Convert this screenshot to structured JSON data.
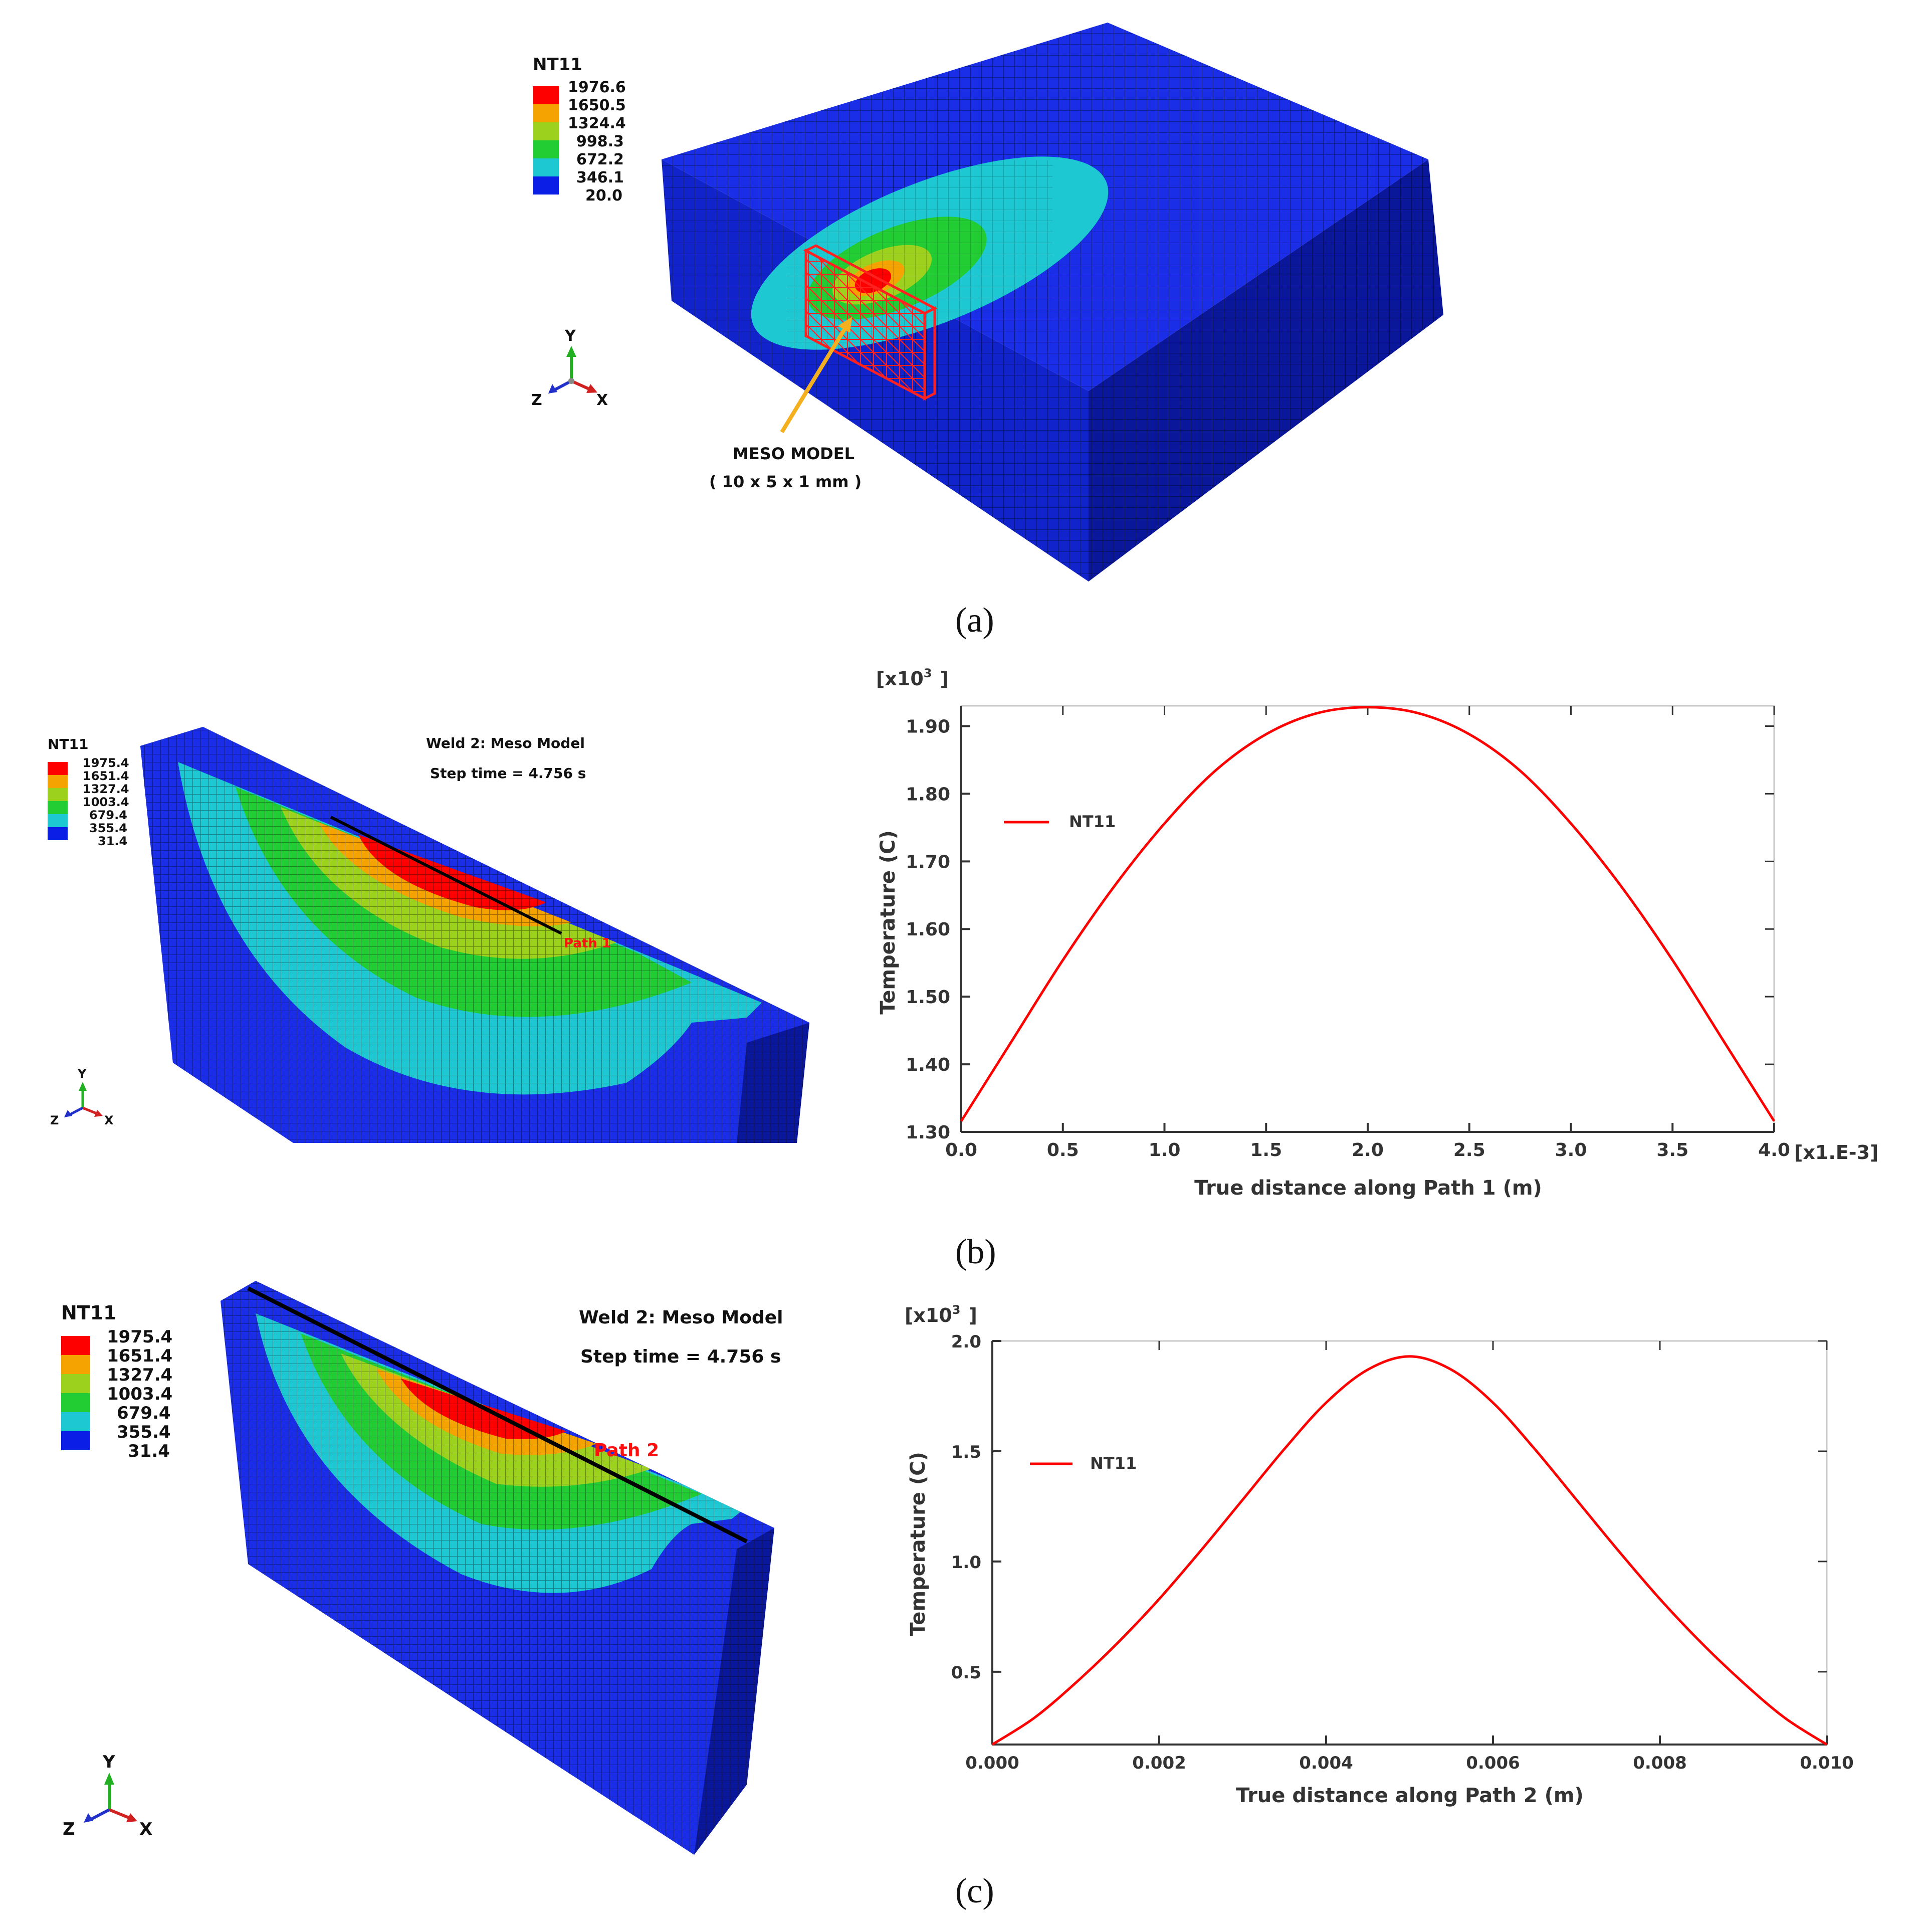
{
  "panel_a": {
    "legend_title": "NT11",
    "legend_values": [
      "1976.6",
      "1650.5",
      "1324.4",
      "998.3",
      "672.2",
      "346.1",
      "20.0"
    ],
    "axis": {
      "y": "Y",
      "z": "Z",
      "x": "X"
    },
    "annotation_line1": "MESO MODEL",
    "annotation_line2": "( 10 x 5 x 1 mm )",
    "caption": "(a)"
  },
  "panel_b": {
    "legend_title": "NT11",
    "legend_values": [
      "1975.4",
      "1651.4",
      "1327.4",
      "1003.4",
      "679.4",
      "355.4",
      "31.4"
    ],
    "title_line1": "Weld 2: Meso Model",
    "title_line2": "Step time = 4.756 s",
    "path_label": "Path 1",
    "axis": {
      "y": "Y",
      "z": "Z",
      "x": "X"
    },
    "caption": "(b)"
  },
  "panel_c": {
    "legend_title": "NT11",
    "legend_values": [
      "1975.4",
      "1651.4",
      "1327.4",
      "1003.4",
      "679.4",
      "355.4",
      "31.4"
    ],
    "title_line1": "Weld 2: Meso Model",
    "title_line2": "Step time = 4.756 s",
    "path_label": "Path 2",
    "axis": {
      "y": "Y",
      "z": "Z",
      "x": "X"
    },
    "caption": "(c)"
  },
  "colors": {
    "red": "#ff0000",
    "orange": "#f5a300",
    "yellowgreen": "#9cd21e",
    "green": "#22cc33",
    "cyan": "#1ec8d2",
    "lightblue": "#148cf0",
    "blue": "#0a1ee6",
    "mesh_blue": "#1428e0"
  },
  "chart_data": [
    {
      "type": "line",
      "title": "",
      "xlabel": "True distance along Path 1 (m)",
      "ylabel": "Temperature (C)",
      "x_multiplier": "[x1.E-3]",
      "y_multiplier_prefix": "[x10",
      "y_multiplier_exp": "3",
      "y_multiplier_suffix": "]",
      "xlim": [
        0.0,
        4.0
      ],
      "ylim": [
        1.3,
        1.93
      ],
      "x_ticks": [
        0.0,
        0.5,
        1.0,
        1.5,
        2.0,
        2.5,
        3.0,
        3.5,
        4.0
      ],
      "x_tick_labels": [
        "0.0",
        "0.5",
        "1.0",
        "1.5",
        "2.0",
        "2.5",
        "3.0",
        "3.5",
        "4.0"
      ],
      "y_ticks": [
        1.3,
        1.4,
        1.5,
        1.6,
        1.7,
        1.8,
        1.9
      ],
      "y_tick_labels": [
        "1.30",
        "1.40",
        "1.50",
        "1.60",
        "1.70",
        "1.80",
        "1.90"
      ],
      "legend": "top-left",
      "series": [
        {
          "name": "NT11",
          "color": "#ff0000",
          "x": [
            0.0,
            0.25,
            0.5,
            0.75,
            1.0,
            1.25,
            1.5,
            1.75,
            2.0,
            2.25,
            2.5,
            2.75,
            3.0,
            3.25,
            3.5,
            3.75,
            4.0
          ],
          "y": [
            1.316,
            1.435,
            1.554,
            1.662,
            1.756,
            1.834,
            1.888,
            1.919,
            1.928,
            1.919,
            1.888,
            1.834,
            1.756,
            1.662,
            1.554,
            1.435,
            1.316
          ]
        }
      ]
    },
    {
      "type": "line",
      "title": "",
      "xlabel": "True distance along Path 2 (m)",
      "ylabel": "Temperature (C)",
      "y_multiplier_prefix": "[x10",
      "y_multiplier_exp": "3",
      "y_multiplier_suffix": "]",
      "xlim": [
        0.0,
        0.01
      ],
      "ylim": [
        0.17,
        2.0
      ],
      "x_ticks": [
        0.0,
        0.002,
        0.004,
        0.006,
        0.008,
        0.01
      ],
      "x_tick_labels": [
        "0.000",
        "0.002",
        "0.004",
        "0.006",
        "0.008",
        "0.010"
      ],
      "y_ticks": [
        0.5,
        1.0,
        1.5,
        2.0
      ],
      "y_tick_labels": [
        "0.5",
        "1.0",
        "1.5",
        "2.0"
      ],
      "legend": "top-left",
      "series": [
        {
          "name": "NT11",
          "color": "#ff0000",
          "x": [
            0.0,
            0.0005,
            0.001,
            0.0015,
            0.002,
            0.0025,
            0.003,
            0.0035,
            0.004,
            0.0045,
            0.005,
            0.0055,
            0.006,
            0.0065,
            0.007,
            0.0075,
            0.008,
            0.0085,
            0.009,
            0.0095,
            0.01
          ],
          "y": [
            0.17,
            0.29,
            0.45,
            0.63,
            0.83,
            1.05,
            1.28,
            1.51,
            1.72,
            1.87,
            1.93,
            1.87,
            1.72,
            1.51,
            1.28,
            1.05,
            0.83,
            0.63,
            0.45,
            0.29,
            0.17
          ]
        }
      ]
    }
  ]
}
